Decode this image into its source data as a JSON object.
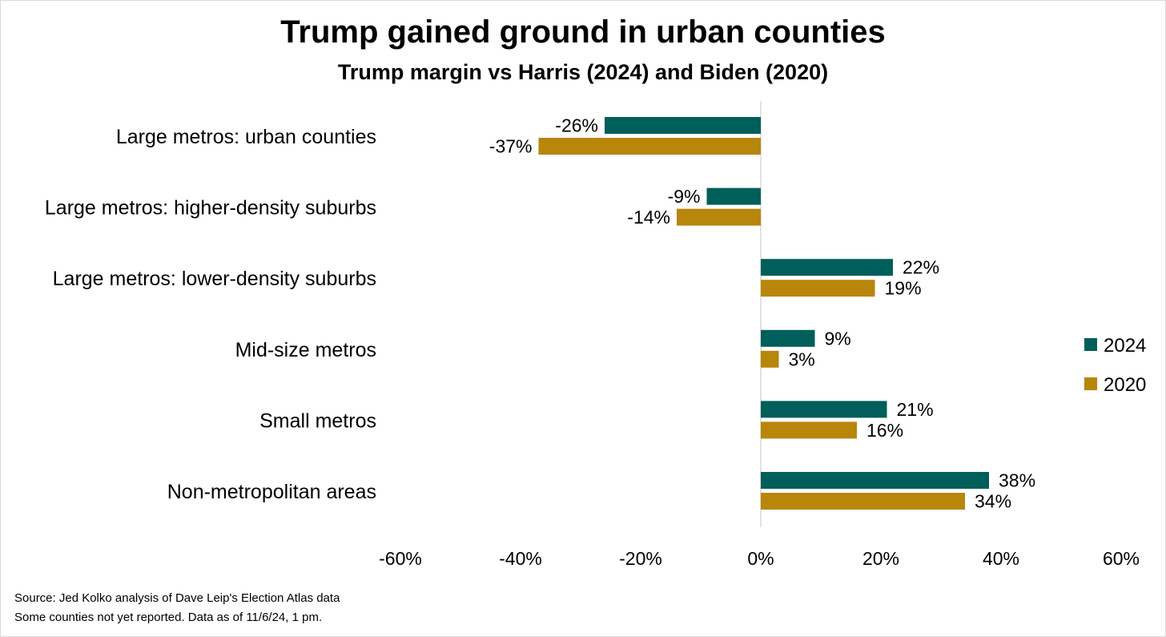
{
  "title": "Trump gained ground in urban counties",
  "subtitle": "Trump margin vs Harris (2024) and Biden (2020)",
  "source": {
    "line1": "Source: Jed Kolko analysis of Dave Leip's Election Atlas data",
    "line2": "Some counties not yet reported. Data as of 11/6/24, 1 pm."
  },
  "colors": {
    "s2024": "#005f5a",
    "s2020": "#b8860b",
    "axis": "#d9d9d9"
  },
  "chart_data": {
    "type": "bar",
    "orientation": "horizontal",
    "title": "Trump gained ground in urban counties",
    "subtitle": "Trump margin vs Harris (2024) and Biden (2020)",
    "categories": [
      "Large metros: urban counties",
      "Large metros: higher-density suburbs",
      "Large metros: lower-density suburbs",
      "Mid-size metros",
      "Small metros",
      "Non-metropolitan areas"
    ],
    "series": [
      {
        "name": "2024",
        "values": [
          -26,
          -9,
          22,
          9,
          21,
          38
        ],
        "labels": [
          "-26%",
          "-9%",
          "22%",
          "9%",
          "21%",
          "38%"
        ]
      },
      {
        "name": "2020",
        "values": [
          -37,
          -14,
          19,
          3,
          16,
          34
        ],
        "labels": [
          "-37%",
          "-14%",
          "19%",
          "3%",
          "16%",
          "34%"
        ]
      }
    ],
    "xlim": [
      -60,
      60
    ],
    "xticks": [
      -60,
      -40,
      -20,
      0,
      20,
      40,
      60
    ],
    "xtick_labels": [
      "-60%",
      "-40%",
      "-20%",
      "0%",
      "20%",
      "40%",
      "60%"
    ],
    "grid": false,
    "legend": "right"
  }
}
